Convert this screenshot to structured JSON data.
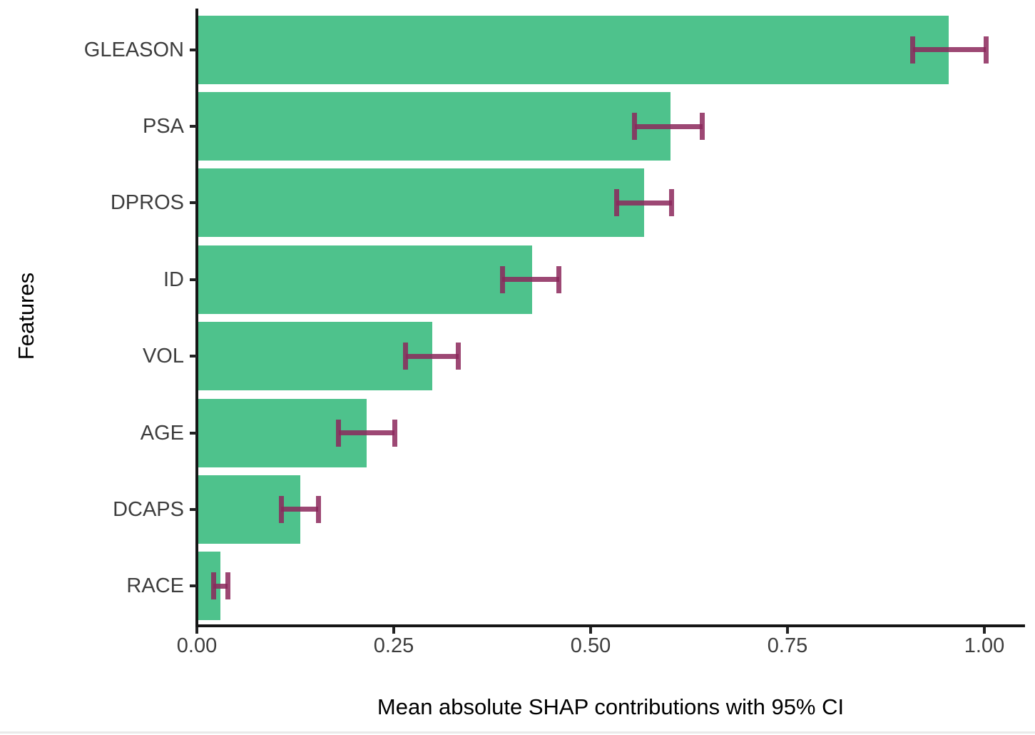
{
  "chart_data": {
    "type": "bar",
    "orientation": "horizontal",
    "xlabel": "Mean absolute SHAP contributions with 95% CI",
    "ylabel": "Features",
    "categories": [
      "GLEASON",
      "PSA",
      "DPROS",
      "ID",
      "VOL",
      "AGE",
      "DCAPS",
      "RACE"
    ],
    "values": [
      0.955,
      0.601,
      0.568,
      0.426,
      0.299,
      0.216,
      0.131,
      0.03
    ],
    "ci_low": [
      0.909,
      0.556,
      0.533,
      0.388,
      0.265,
      0.18,
      0.107,
      0.021
    ],
    "ci_high": [
      1.002,
      0.642,
      0.603,
      0.46,
      0.332,
      0.251,
      0.154,
      0.039
    ],
    "x_tick_labels": [
      "0.00",
      "0.25",
      "0.50",
      "0.75",
      "1.00"
    ],
    "x_tick_values": [
      0.0,
      0.25,
      0.5,
      0.75,
      1.0
    ],
    "xlim": [
      0,
      1.052
    ],
    "grid": false,
    "legend": "none",
    "bar_color": "#4EC28C",
    "error_bar_color": "rgba(140,40,92,0.85)",
    "axis_color": "#161616",
    "tick_label_color": "#3d3d3d",
    "title_color": "#000000"
  }
}
